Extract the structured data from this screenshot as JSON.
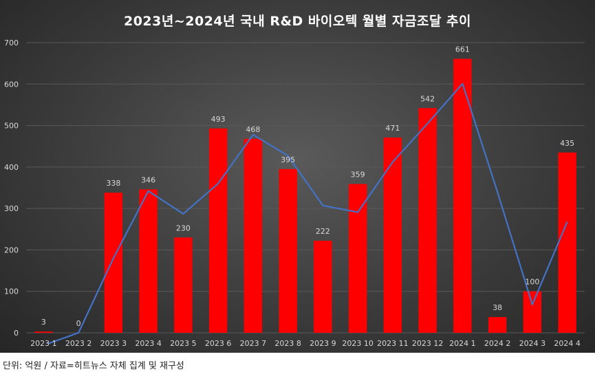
{
  "footnote": "단위: 억원 / 자료=히트뉴스 자체 집계 및 재구성",
  "colors": {
    "bar": "#ff0000",
    "line": "#4472c4",
    "text": "#d9d9d9",
    "grid": "#595959"
  },
  "chart_data": {
    "type": "bar",
    "title": "2023년~2024년 국내 R&D 바이오텍 월별 자금조달 추이",
    "categories": [
      "2023 1",
      "2023 2",
      "2023 3",
      "2023 4",
      "2023 5",
      "2023 6",
      "2023 7",
      "2023 8",
      "2023 9",
      "2023 10",
      "2023 11",
      "2023 12",
      "2024 1",
      "2024 2",
      "2024 3",
      "2024 4"
    ],
    "series": [
      {
        "type": "bar",
        "values": [
          3,
          0,
          338,
          346,
          230,
          493,
          468,
          395,
          222,
          359,
          471,
          542,
          661,
          38,
          100,
          435
        ]
      },
      {
        "type": "line",
        "values": [
          -30,
          0,
          180,
          342,
          287,
          360,
          478,
          427,
          307,
          291,
          412,
          505,
          601,
          340,
          68,
          268
        ]
      }
    ],
    "data_labels": [
      "3",
      "0",
      "338",
      "346",
      "230",
      "493",
      "468",
      "395",
      "222",
      "359",
      "471",
      "542",
      "661",
      "38",
      "100",
      "435"
    ],
    "yticks": [
      "0",
      "100",
      "200",
      "300",
      "400",
      "500",
      "600",
      "700"
    ],
    "ylim": [
      0,
      700
    ],
    "grid": true
  }
}
